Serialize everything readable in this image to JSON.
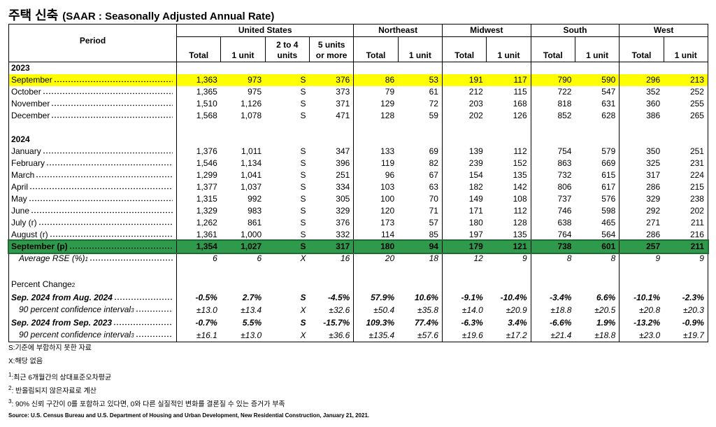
{
  "header": {
    "title": "주택 신축",
    "subtitle": "(SAAR : Seasonally Adjusted Annual Rate)"
  },
  "table": {
    "period_label": "Period",
    "groups": [
      {
        "name": "United States",
        "columns": [
          "Total",
          "1 unit",
          "2 to 4\nunits",
          "5 units\nor more"
        ]
      },
      {
        "name": "Northeast",
        "columns": [
          "Total",
          "1 unit"
        ]
      },
      {
        "name": "Midwest",
        "columns": [
          "Total",
          "1 unit"
        ]
      },
      {
        "name": "South",
        "columns": [
          "Total",
          "1 unit"
        ]
      },
      {
        "name": "West",
        "columns": [
          "Total",
          "1 unit"
        ]
      }
    ],
    "sections": [
      {
        "label": "2023",
        "rows": [
          {
            "label": "September",
            "fill": "#ffff00",
            "values": [
              "1,363",
              "973",
              "S",
              "376",
              "86",
              "53",
              "191",
              "117",
              "790",
              "590",
              "296",
              "213"
            ]
          },
          {
            "label": "October",
            "values": [
              "1,365",
              "975",
              "S",
              "373",
              "79",
              "61",
              "212",
              "115",
              "722",
              "547",
              "352",
              "252"
            ]
          },
          {
            "label": "November",
            "values": [
              "1,510",
              "1,126",
              "S",
              "371",
              "129",
              "72",
              "203",
              "168",
              "818",
              "631",
              "360",
              "255"
            ]
          },
          {
            "label": "December",
            "values": [
              "1,568",
              "1,078",
              "S",
              "471",
              "128",
              "59",
              "202",
              "126",
              "852",
              "628",
              "386",
              "265"
            ]
          }
        ]
      },
      {
        "label": "2024",
        "rows": [
          {
            "label": "January",
            "values": [
              "1,376",
              "1,011",
              "S",
              "347",
              "133",
              "69",
              "139",
              "112",
              "754",
              "579",
              "350",
              "251"
            ]
          },
          {
            "label": "February",
            "values": [
              "1,546",
              "1,134",
              "S",
              "396",
              "119",
              "82",
              "239",
              "152",
              "863",
              "669",
              "325",
              "231"
            ]
          },
          {
            "label": "March",
            "values": [
              "1,299",
              "1,041",
              "S",
              "251",
              "96",
              "67",
              "154",
              "135",
              "732",
              "615",
              "317",
              "224"
            ]
          },
          {
            "label": "April",
            "values": [
              "1,377",
              "1,037",
              "S",
              "334",
              "103",
              "63",
              "182",
              "142",
              "806",
              "617",
              "286",
              "215"
            ]
          },
          {
            "label": "May",
            "values": [
              "1,315",
              "992",
              "S",
              "305",
              "100",
              "70",
              "149",
              "108",
              "737",
              "576",
              "329",
              "238"
            ]
          },
          {
            "label": "June",
            "values": [
              "1,329",
              "983",
              "S",
              "329",
              "120",
              "71",
              "171",
              "112",
              "746",
              "598",
              "292",
              "202"
            ]
          },
          {
            "label": "July (r)",
            "values": [
              "1,262",
              "861",
              "S",
              "376",
              "173",
              "57",
              "180",
              "128",
              "638",
              "465",
              "271",
              "211"
            ]
          },
          {
            "label": "August (r)",
            "values": [
              "1,361",
              "1,000",
              "S",
              "332",
              "114",
              "85",
              "197",
              "135",
              "764",
              "564",
              "286",
              "216"
            ]
          },
          {
            "label": "September (p)",
            "fill": "#2f9a4c",
            "bold": true,
            "values": [
              "1,354",
              "1,027",
              "S",
              "317",
              "180",
              "94",
              "179",
              "121",
              "738",
              "601",
              "257",
              "211"
            ]
          },
          {
            "label": "Average RSE (%)",
            "note": "1",
            "italic": true,
            "indent": true,
            "values": [
              "6",
              "6",
              "X",
              "16",
              "20",
              "18",
              "12",
              "9",
              "8",
              "8",
              "9",
              "9"
            ]
          }
        ]
      },
      {
        "label": "Percent Change",
        "note": "2",
        "rows": [
          {
            "label": "Sep. 2024 from Aug. 2024",
            "bold": true,
            "italic": true,
            "values": [
              "-0.5%",
              "2.7%",
              "S",
              "-4.5%",
              "57.9%",
              "10.6%",
              "-9.1%",
              "-10.4%",
              "-3.4%",
              "6.6%",
              "-10.1%",
              "-2.3%"
            ]
          },
          {
            "label": "90 percent confidence interval",
            "note": "3",
            "italic": true,
            "indent": true,
            "values": [
              "±13.0",
              "±13.4",
              "X",
              "±32.6",
              "±50.4",
              "±35.8",
              "±14.0",
              "±20.9",
              "±18.8",
              "±20.5",
              "±20.8",
              "±20.3"
            ]
          },
          {
            "label": "Sep. 2024 from Sep. 2023",
            "bold": true,
            "italic": true,
            "values": [
              "-0.7%",
              "5.5%",
              "S",
              "-15.7%",
              "109.3%",
              "77.4%",
              "-6.3%",
              "3.4%",
              "-6.6%",
              "1.9%",
              "-13.2%",
              "-0.9%"
            ]
          },
          {
            "label": "90 percent confidence interval",
            "note": "3",
            "italic": true,
            "indent": true,
            "values": [
              "±16.1",
              "±13.0",
              "X",
              "±36.6",
              "±135.4",
              "±57.6",
              "±19.6",
              "±17.2",
              "±21.4",
              "±18.8",
              "±23.0",
              "±19.7"
            ]
          }
        ]
      }
    ]
  },
  "footnotes": [
    {
      "text": "S:기준에 부합하지 못한 자료"
    },
    {
      "text": "X:해당 없음"
    },
    {
      "note": "1",
      "text": ":최근 6개월간의 상대표준오차평균"
    },
    {
      "note": "2",
      "text": ": 반올림되지 않은자료로 계산"
    },
    {
      "note": "3",
      "text": ": 90% 신뢰 구간이 0를 포함하고 있다면, 0와 다른 실질적인 변화를 결론질 수 있는 증거가 부족"
    }
  ],
  "source": "Source: U.S. Census Bureau and U.S. Department of Housing and Urban Development, New Residential Construction, January 21, 2021."
}
